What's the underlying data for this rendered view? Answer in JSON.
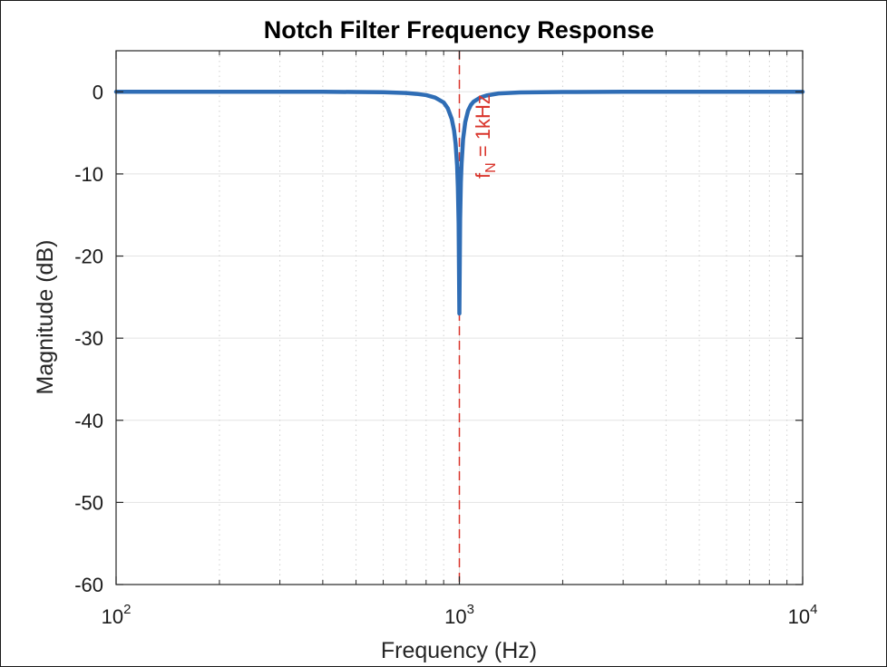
{
  "chart_data": {
    "type": "line",
    "title": "Notch Filter Frequency Response",
    "xlabel": "Frequency (Hz)",
    "ylabel": "Magnitude (dB)",
    "xscale": "log",
    "xlim": [
      100,
      10000
    ],
    "ylim": [
      -60,
      5
    ],
    "grid": true,
    "x_ticks": [
      {
        "base": "10",
        "exp": "2"
      },
      {
        "base": "10",
        "exp": "3"
      },
      {
        "base": "10",
        "exp": "4"
      }
    ],
    "y_ticks": [
      "0",
      "-10",
      "-20",
      "-30",
      "-40",
      "-50",
      "-60"
    ],
    "series": [
      {
        "color": "#2f6db5",
        "x": [
          100,
          200,
          300,
          400,
          500,
          600,
          700,
          750,
          800,
          850,
          900,
          925,
          950,
          965,
          975,
          985,
          990,
          995,
          1000,
          1005,
          1010,
          1015,
          1025,
          1040,
          1060,
          1080,
          1100,
          1150,
          1200,
          1300,
          1500,
          2000,
          3000,
          5000,
          10000
        ],
        "y": [
          0,
          0,
          0,
          0,
          -0.02,
          -0.05,
          -0.15,
          -0.25,
          -0.4,
          -0.7,
          -1.3,
          -2.0,
          -3.3,
          -4.7,
          -6.3,
          -9.0,
          -11.6,
          -16.0,
          -27,
          -15.5,
          -11.0,
          -8.7,
          -5.8,
          -3.7,
          -2.3,
          -1.6,
          -1.2,
          -0.7,
          -0.45,
          -0.2,
          -0.08,
          -0.02,
          0,
          0,
          0
        ]
      }
    ],
    "annotation": {
      "x": 1000,
      "color": "#d9342b",
      "line_style": "dashed",
      "text_main": "f",
      "text_sub": "N",
      "text_rest": " = 1kHz"
    }
  }
}
